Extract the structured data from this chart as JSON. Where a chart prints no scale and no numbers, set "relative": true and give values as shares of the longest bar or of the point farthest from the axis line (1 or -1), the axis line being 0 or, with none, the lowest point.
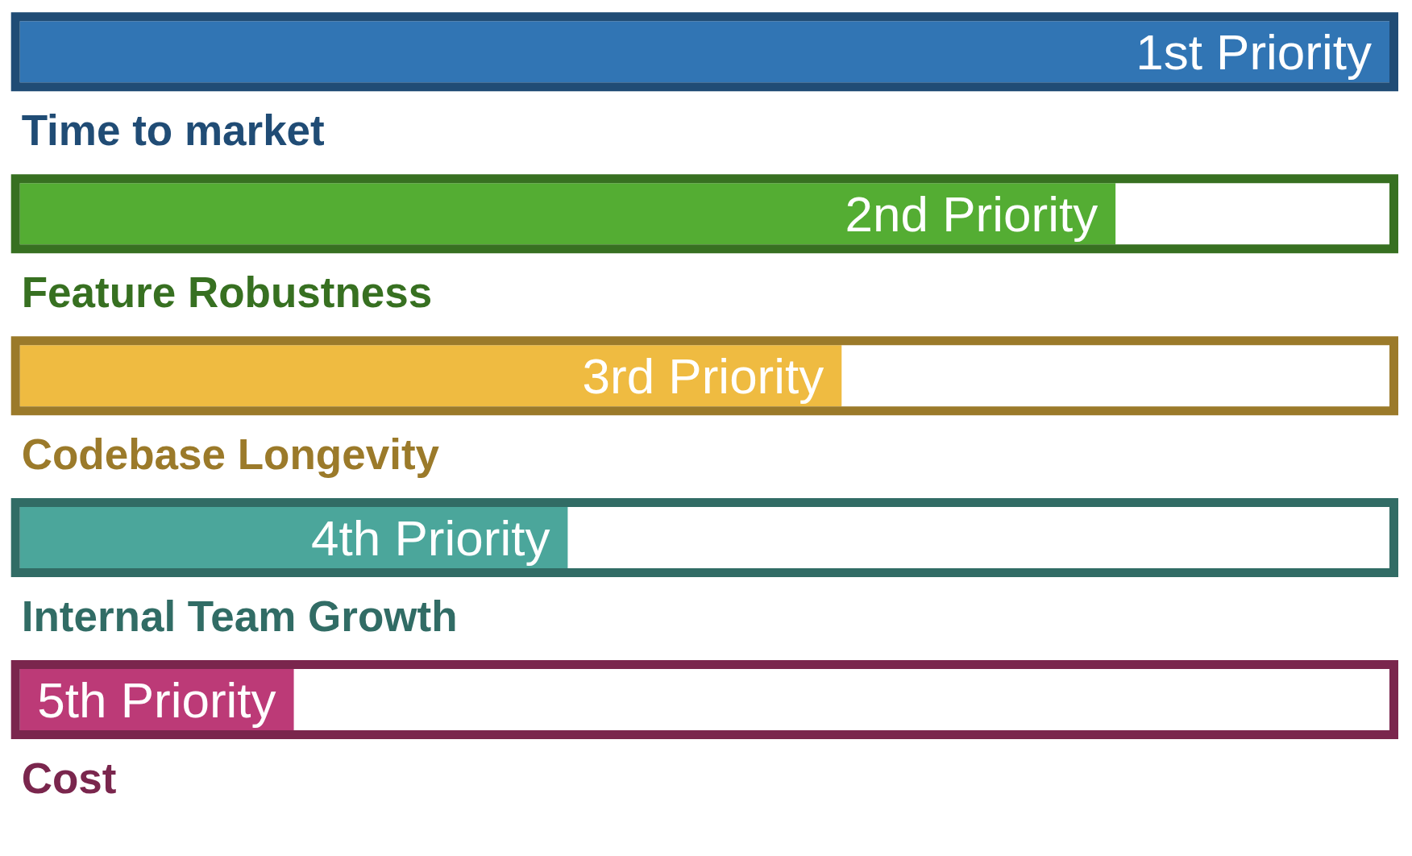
{
  "chart_data": {
    "type": "bar",
    "orientation": "horizontal",
    "relative": true,
    "tick_labels": "y",
    "categories": [
      "Time to market",
      "Feature Robustness",
      "Codebase Longevity",
      "Internal Team Growth",
      "Cost"
    ],
    "values": [
      1,
      0.8,
      0.6,
      0.4,
      0.2
    ],
    "colors": [
      "#3175b4",
      "#54ad33",
      "#efbb41",
      "#4ba69b",
      "#bc3a77"
    ],
    "annotations": [
      "1st Priority",
      "2nd Priority",
      "3rd Priority",
      "4th Priority",
      "5th Priority"
    ]
  }
}
